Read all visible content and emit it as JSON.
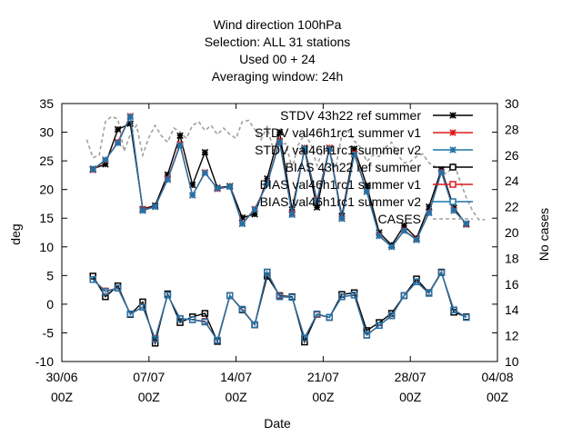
{
  "chart_data": {
    "type": "line",
    "title_lines": [
      "Wind direction 100hPa",
      "Selection: ALL     31 stations",
      "Used  00  + 24",
      "Averaging window: 24h"
    ],
    "xlabel": "Date",
    "ylabel": "deg",
    "y2label": "No cases",
    "xlim": [
      0,
      35
    ],
    "ylim": [
      -10,
      35
    ],
    "y2lim": [
      10,
      30
    ],
    "x_ticks": [
      {
        "x": 0,
        "line1": "30/06",
        "line2": "00Z"
      },
      {
        "x": 7,
        "line1": "07/07",
        "line2": "00Z"
      },
      {
        "x": 14,
        "line1": "14/07",
        "line2": "00Z"
      },
      {
        "x": 21,
        "line1": "21/07",
        "line2": "00Z"
      },
      {
        "x": 28,
        "line1": "28/07",
        "line2": "00Z"
      },
      {
        "x": 35,
        "line1": "04/08",
        "line2": "00Z"
      }
    ],
    "y_ticks": [
      "-10",
      "-5",
      "0",
      "5",
      "10",
      "15",
      "20",
      "25",
      "30",
      "35"
    ],
    "y2_ticks": [
      "10",
      "12",
      "14",
      "16",
      "18",
      "20",
      "22",
      "24",
      "26",
      "28",
      "30"
    ],
    "x": [
      2.5,
      3.5,
      4.5,
      5.5,
      6.5,
      7.5,
      8.5,
      9.5,
      10.5,
      11.5,
      12.5,
      13.5,
      14.5,
      15.5,
      16.5,
      17.5,
      18.5,
      19.5,
      20.5,
      21.5,
      22.5,
      23.5,
      24.5,
      25.5,
      26.5,
      27.5,
      28.5,
      29.5,
      30.5,
      31.5,
      32.5
    ],
    "series": [
      {
        "name": "STDV 43h22_ref_summer",
        "axis": "y1",
        "color": "#000000",
        "marker": "x",
        "values": [
          23.6,
          24.4,
          30.5,
          31.5,
          16.6,
          17.2,
          22.6,
          29.4,
          20.8,
          26.5,
          20.3,
          20.6,
          15.1,
          15.7,
          21.9,
          30.0,
          16.5,
          27.0,
          16.9,
          27.2,
          15.4,
          27.1,
          20.7,
          12.5,
          10.3,
          13.7,
          11.5,
          17.0,
          23.5,
          16.8,
          13.9
        ]
      },
      {
        "name": "STDV val46h1rc1_summer_v1",
        "axis": "y1",
        "color": "#dd1c1c",
        "marker": "x",
        "values": [
          23.4,
          25.1,
          28.3,
          32.8,
          16.5,
          17.0,
          21.9,
          27.9,
          19.0,
          23.0,
          20.1,
          20.5,
          14.1,
          16.6,
          21.1,
          28.5,
          15.8,
          27.3,
          18.2,
          27.3,
          15.0,
          26.3,
          19.7,
          12.0,
          10.0,
          12.9,
          11.3,
          16.0,
          23.1,
          16.4,
          14.0
        ]
      },
      {
        "name": "STDV val46h1rc1_summer_v2",
        "axis": "y1",
        "color": "#1f74a8",
        "marker": "x",
        "values": [
          23.5,
          25.2,
          28.1,
          32.7,
          16.3,
          17.0,
          21.7,
          27.7,
          19.0,
          22.9,
          20.2,
          20.5,
          14.0,
          16.5,
          21.0,
          28.3,
          15.6,
          27.2,
          18.0,
          27.1,
          14.9,
          26.1,
          19.6,
          11.9,
          10.0,
          12.8,
          11.2,
          15.9,
          23.0,
          16.3,
          14.1
        ]
      },
      {
        "name": "BIAS 43h22_ref_summer",
        "axis": "y1",
        "color": "#000000",
        "marker": "square",
        "values": [
          4.9,
          1.3,
          3.2,
          -1.8,
          0.4,
          -6.8,
          1.8,
          -3.2,
          -2.2,
          -1.6,
          -6.5,
          1.5,
          -1.0,
          -3.6,
          4.9,
          1.5,
          1.3,
          -6.6,
          -1.8,
          -2.3,
          1.7,
          2.0,
          -4.6,
          -3.2,
          -1.6,
          1.5,
          4.4,
          2.0,
          5.6,
          -1.4,
          -2.2
        ]
      },
      {
        "name": "BIAS val46h1rc1_summer_v1",
        "axis": "y1",
        "color": "#dd1c1c",
        "marker": "square",
        "values": [
          4.3,
          2.3,
          2.8,
          -1.7,
          -0.5,
          -6.0,
          1.6,
          -2.5,
          -2.7,
          -3.0,
          -6.3,
          1.5,
          -0.9,
          -3.6,
          5.6,
          1.4,
          1.2,
          -5.9,
          -1.8,
          -2.3,
          1.3,
          1.6,
          -5.4,
          -3.7,
          -2.0,
          1.5,
          3.9,
          1.9,
          5.5,
          -1.0,
          -2.3
        ]
      },
      {
        "name": "BIAS val46h1rc1_summer_v2",
        "axis": "y1",
        "color": "#1f74a8",
        "marker": "square",
        "values": [
          4.3,
          2.2,
          2.8,
          -1.7,
          -0.5,
          -6.1,
          1.6,
          -2.5,
          -2.7,
          -3.1,
          -6.3,
          1.5,
          -0.9,
          -3.6,
          5.6,
          1.3,
          1.2,
          -5.9,
          -1.7,
          -2.3,
          1.3,
          1.6,
          -5.4,
          -3.7,
          -2.0,
          1.5,
          3.9,
          1.9,
          5.5,
          -1.0,
          -2.3
        ]
      },
      {
        "name": "CASES",
        "axis": "y2",
        "color": "#a0a0a0",
        "dashed": true,
        "x": [
          2.0,
          2.5,
          3.0,
          3.5,
          4.0,
          4.5,
          5.0,
          5.5,
          6.0,
          6.5,
          7.0,
          7.5,
          8.0,
          8.5,
          9.0,
          9.5,
          10.0,
          10.5,
          11.0,
          11.5,
          12.0,
          12.5,
          13.0,
          13.5,
          14.0,
          14.5,
          15.0,
          15.5,
          16.0,
          16.5,
          17.0,
          17.5,
          18.0,
          18.5,
          19.0,
          19.5,
          20.0,
          20.5,
          21.0,
          21.5,
          22.0,
          22.5,
          23.0,
          23.5,
          24.0,
          24.5,
          25.0,
          25.5,
          26.0,
          26.5,
          27.0,
          27.5,
          28.0,
          28.5,
          29.0,
          29.5,
          30.0,
          30.5,
          31.0,
          31.5,
          32.0,
          32.5,
          33.0,
          33.5,
          34.0
        ],
        "values": [
          27.2,
          25.8,
          26.0,
          28.6,
          29.0,
          28.8,
          26.3,
          27.6,
          28.3,
          26.0,
          27.4,
          28.3,
          27.5,
          27.0,
          28.1,
          27.8,
          27.3,
          28.3,
          28.6,
          27.9,
          28.3,
          27.6,
          28.1,
          27.6,
          27.3,
          28.6,
          28.7,
          28.0,
          27.2,
          28.2,
          26.4,
          26.8,
          26.9,
          25.0,
          26.8,
          27.6,
          26.9,
          25.2,
          26.4,
          26.2,
          25.0,
          27.6,
          27.9,
          27.1,
          26.6,
          25.5,
          26.0,
          25.9,
          26.6,
          27.0,
          26.0,
          25.4,
          25.5,
          25.9,
          26.1,
          25.4,
          25.1,
          24.6,
          24.6,
          25.4,
          24.0,
          22.7,
          21.7,
          21.0,
          21.0
        ]
      }
    ],
    "legend_position": "top-right"
  }
}
